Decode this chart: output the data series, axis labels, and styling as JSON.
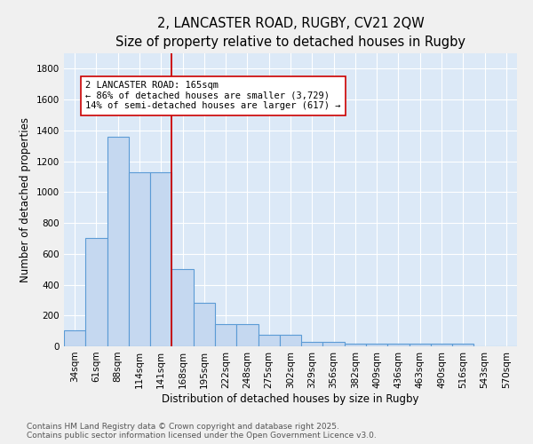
{
  "title1": "2, LANCASTER ROAD, RUGBY, CV21 2QW",
  "title2": "Size of property relative to detached houses in Rugby",
  "xlabel": "Distribution of detached houses by size in Rugby",
  "ylabel": "Number of detached properties",
  "bin_labels": [
    "34sqm",
    "61sqm",
    "88sqm",
    "114sqm",
    "141sqm",
    "168sqm",
    "195sqm",
    "222sqm",
    "248sqm",
    "275sqm",
    "302sqm",
    "329sqm",
    "356sqm",
    "382sqm",
    "409sqm",
    "436sqm",
    "463sqm",
    "490sqm",
    "516sqm",
    "543sqm",
    "570sqm"
  ],
  "bar_values": [
    105,
    705,
    1360,
    1130,
    1130,
    500,
    280,
    145,
    145,
    75,
    75,
    30,
    30,
    15,
    15,
    15,
    15,
    15,
    20,
    0,
    0
  ],
  "bar_color": "#c5d8f0",
  "bar_edge_color": "#5b9bd5",
  "fig_background_color": "#f0f0f0",
  "ax_background_color": "#dce9f7",
  "vline_x_index": 5,
  "vline_color": "#cc0000",
  "annotation_text": "2 LANCASTER ROAD: 165sqm\n← 86% of detached houses are smaller (3,729)\n14% of semi-detached houses are larger (617) →",
  "annotation_box_color": "white",
  "annotation_box_edge": "#cc0000",
  "ylim": [
    0,
    1900
  ],
  "yticks": [
    0,
    200,
    400,
    600,
    800,
    1000,
    1200,
    1400,
    1600,
    1800
  ],
  "footer_line1": "Contains HM Land Registry data © Crown copyright and database right 2025.",
  "footer_line2": "Contains public sector information licensed under the Open Government Licence v3.0.",
  "title_fontsize": 10.5,
  "subtitle_fontsize": 9.5,
  "axis_label_fontsize": 8.5,
  "tick_fontsize": 7.5,
  "footer_fontsize": 6.5,
  "annotation_fontsize": 7.5
}
